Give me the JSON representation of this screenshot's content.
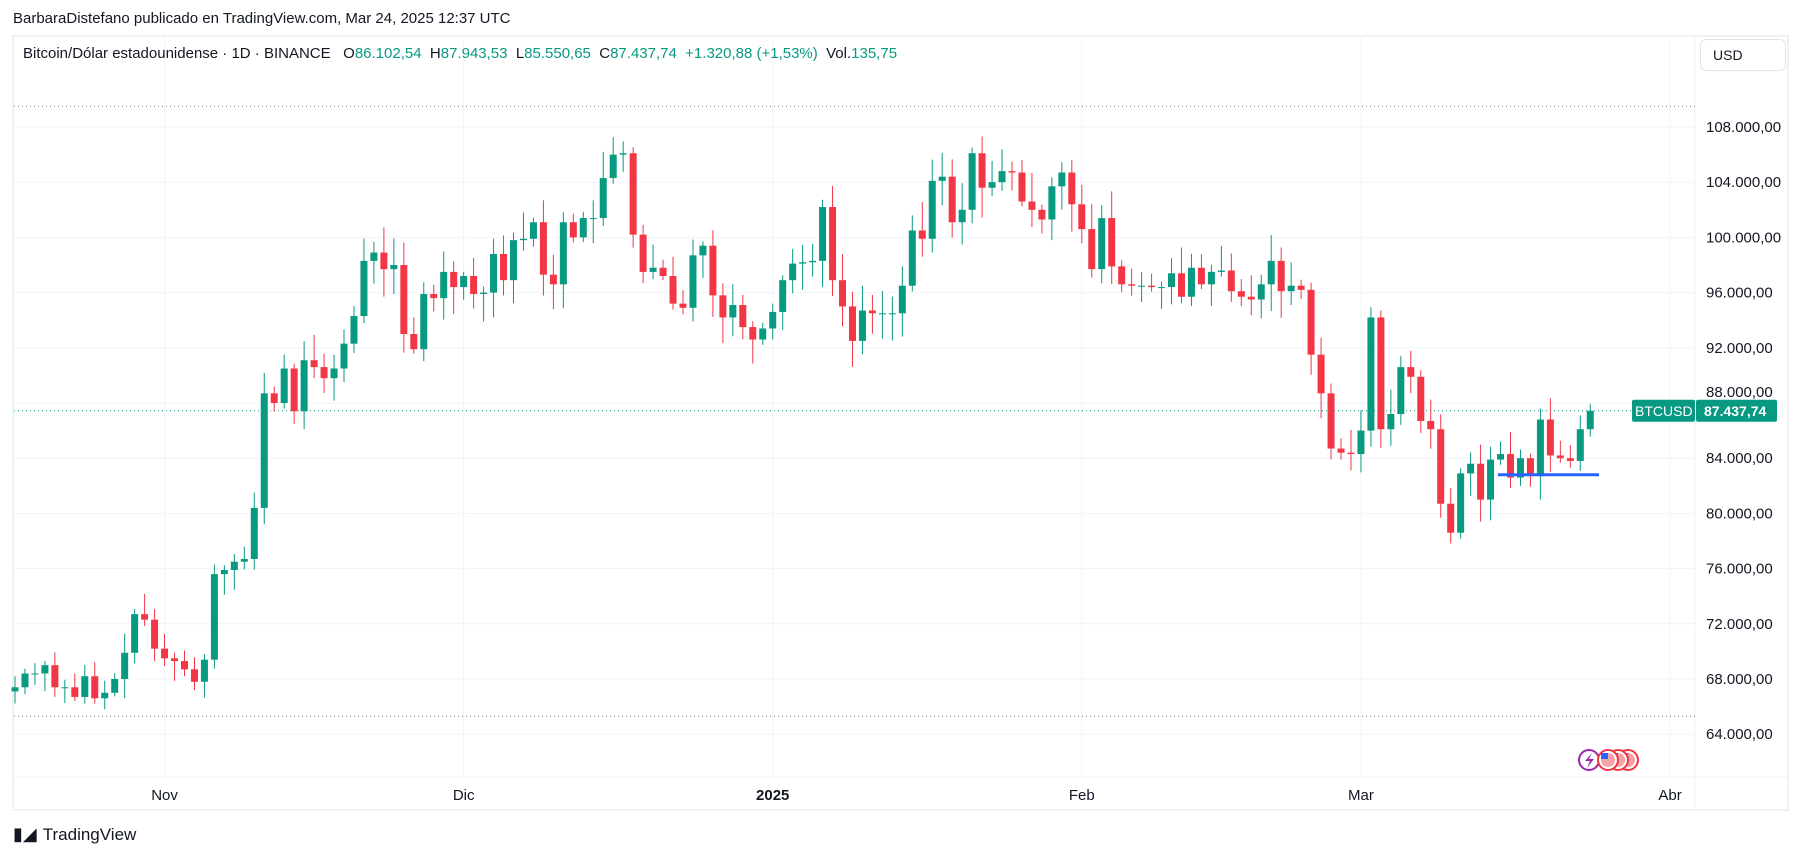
{
  "published": "BarbaraDistefano publicado en TradingView.com, Mar 24, 2025 12:37 UTC",
  "legend": {
    "symbol": "Bitcoin/Dólar estadounidense · 1D · BINANCE",
    "o_label": "O",
    "o": "86.102,54",
    "h_label": "H",
    "h": "87.943,53",
    "l_label": "L",
    "l": "85.550,65",
    "c_label": "C",
    "c": "87.437,74",
    "change": "+1.320,88 (+1,53%)",
    "vol_label": "Vol.",
    "vol": "135,75"
  },
  "currency": "USD",
  "price_label": {
    "symbol": "BTCUSD",
    "value": "87.437,74"
  },
  "logo": "TradingView",
  "colors": {
    "up": "#089981",
    "down": "#f23645",
    "line": "#2962ff"
  },
  "chart_data": {
    "type": "candlestick",
    "start_date": "2024-10-17",
    "end_date": "2025-03-24",
    "interval": "1D",
    "ylim": [
      61000,
      112000
    ],
    "y_ticks": [
      64000,
      68000,
      72000,
      76000,
      80000,
      84000,
      88000,
      92000,
      96000,
      100000,
      104000,
      108000
    ],
    "y_tick_labels": [
      "64.000,00",
      "68.000,00",
      "72.000,00",
      "76.000,00",
      "80.000,00",
      "84.000,00",
      "88.000,00",
      "92.000,00",
      "96.000,00",
      "100.000,00",
      "104.000,00",
      "108.000,00"
    ],
    "x_ticks": [
      {
        "label": "Nov",
        "day": 15
      },
      {
        "label": "Dic",
        "day": 45
      },
      {
        "label": "2025",
        "day": 76
      },
      {
        "label": "Feb",
        "day": 107
      },
      {
        "label": "Mar",
        "day": 135
      },
      {
        "label": "Abr",
        "day": 166
      }
    ],
    "first_open": 67100,
    "closes": [
      67400,
      68400,
      68400,
      69000,
      67400,
      67400,
      66700,
      68200,
      66600,
      67000,
      68000,
      69900,
      72700,
      72300,
      70200,
      69500,
      69300,
      68700,
      67800,
      69400,
      75600,
      75900,
      76500,
      76700,
      80400,
      88700,
      88000,
      90500,
      87400,
      91100,
      90600,
      89800,
      90500,
      92300,
      94300,
      98300,
      98900,
      97700,
      98000,
      93000,
      91900,
      95900,
      95600,
      97500,
      96400,
      97200,
      95900,
      96000,
      98800,
      96900,
      99800,
      99900,
      101100,
      97300,
      96600,
      101100,
      100000,
      101400,
      101400,
      104300,
      106000,
      106100,
      100200,
      97500,
      97800,
      97200,
      95200,
      94900,
      98700,
      99400,
      95800,
      94200,
      95100,
      93500,
      92600,
      93400,
      94600,
      96900,
      98100,
      98200,
      98300,
      102200,
      96900,
      95000,
      92500,
      94700,
      94500,
      94500,
      94500,
      96500,
      100500,
      99900,
      104100,
      104400,
      101100,
      102000,
      106100,
      103600,
      104000,
      104800,
      104700,
      102600,
      102000,
      101300,
      103700,
      104700,
      102400,
      100600,
      97700,
      101400,
      97900,
      96600,
      96500,
      96500,
      96400,
      96400,
      97400,
      95700,
      97800,
      96600,
      97500,
      97600,
      96100,
      95700,
      95500,
      96600,
      98300,
      96100,
      96500,
      96200,
      91500,
      88700,
      84700,
      84400,
      84300,
      86000,
      94200,
      86100,
      87200,
      90600,
      89900,
      86700,
      86100,
      80700,
      78600,
      82900,
      83600,
      81000,
      83900,
      84300,
      82600,
      84000,
      82700,
      86800,
      84200,
      84000,
      83800,
      86100,
      87437.74
    ],
    "last_candle": {
      "open": 86102.54,
      "high": 87943.53,
      "low": 85550.65,
      "close": 87437.74
    },
    "reference_lines": {
      "period_high": 109500,
      "period_low": 65300,
      "current": 87437.74,
      "support_drawn": 82800
    }
  }
}
